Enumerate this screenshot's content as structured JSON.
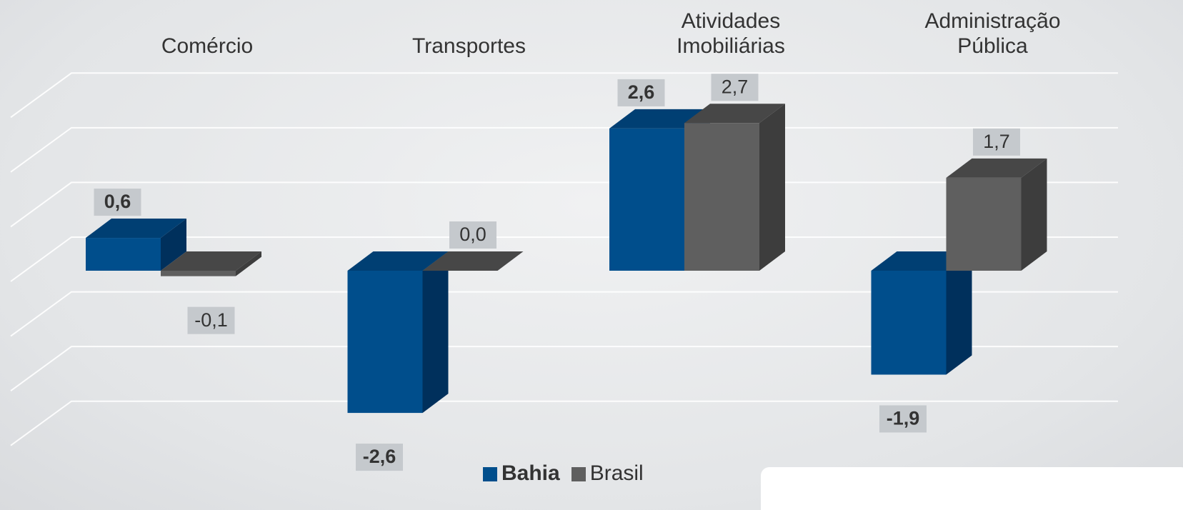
{
  "chart_data": {
    "type": "bar3d",
    "categories": [
      "Comércio",
      "Transportes",
      "Atividades Imobiliárias",
      "Administração Pública"
    ],
    "series": [
      {
        "name": "Bahia",
        "color": "#004e8c",
        "values": [
          0.6,
          -2.6,
          2.6,
          -1.9
        ],
        "value_labels": [
          "0,6",
          "-2,6",
          "2,6",
          "-1,9"
        ]
      },
      {
        "name": "Brasil",
        "color": "#5f5f5f",
        "values": [
          -0.1,
          0.0,
          2.7,
          1.7
        ],
        "value_labels": [
          "-0,1",
          "0,0",
          "2,7",
          "1,7"
        ]
      }
    ],
    "ylim": [
      -3.5,
      3.5
    ],
    "yticks": [
      -3,
      -2,
      -1,
      0,
      1,
      2,
      3
    ],
    "grid": true
  }
}
